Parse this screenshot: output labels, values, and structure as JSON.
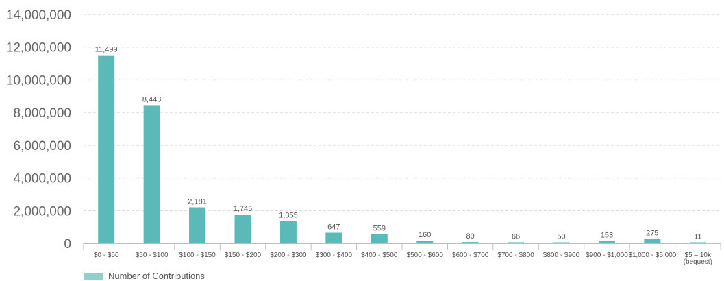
{
  "colors": {
    "bar": "#5bbab8",
    "legend_swatch": "#8fd0cd"
  },
  "chart_data": {
    "type": "bar",
    "categories": [
      "$0 - $50",
      "$50 - $100",
      "$100 - $150",
      "$150 - $200",
      "$200 - $300",
      "$300 - $400",
      "$400 - $500",
      "$500 - $600",
      "$600 - $700",
      "$700 - $800",
      "$800 - $900",
      "$900 - $1,000",
      "$1,000 - $5,000",
      "$5 – 10k (bequest)"
    ],
    "series": [
      {
        "name": "Number of Contributions",
        "values": [
          11500000,
          8450000,
          2200000,
          1760000,
          1360000,
          650000,
          560000,
          160000,
          80000,
          66000,
          50000,
          153000,
          275000,
          11000
        ],
        "data_labels": [
          "11,499",
          "8,443",
          "2,181",
          "1,745",
          "1,355",
          "647",
          "559",
          "160",
          "80",
          "66",
          "50",
          "153",
          "275",
          "11"
        ]
      }
    ],
    "ylim": [
      0,
      14000000
    ],
    "yticks": [
      0,
      2000000,
      4000000,
      6000000,
      8000000,
      10000000,
      12000000,
      14000000
    ],
    "ytick_labels": [
      "0",
      "2,000,000",
      "4,000,000",
      "6,000,000",
      "8,000,000",
      "10,000,000",
      "12,000,000",
      "14,000,000"
    ],
    "grid": true,
    "legend_position": "bottom-left"
  }
}
